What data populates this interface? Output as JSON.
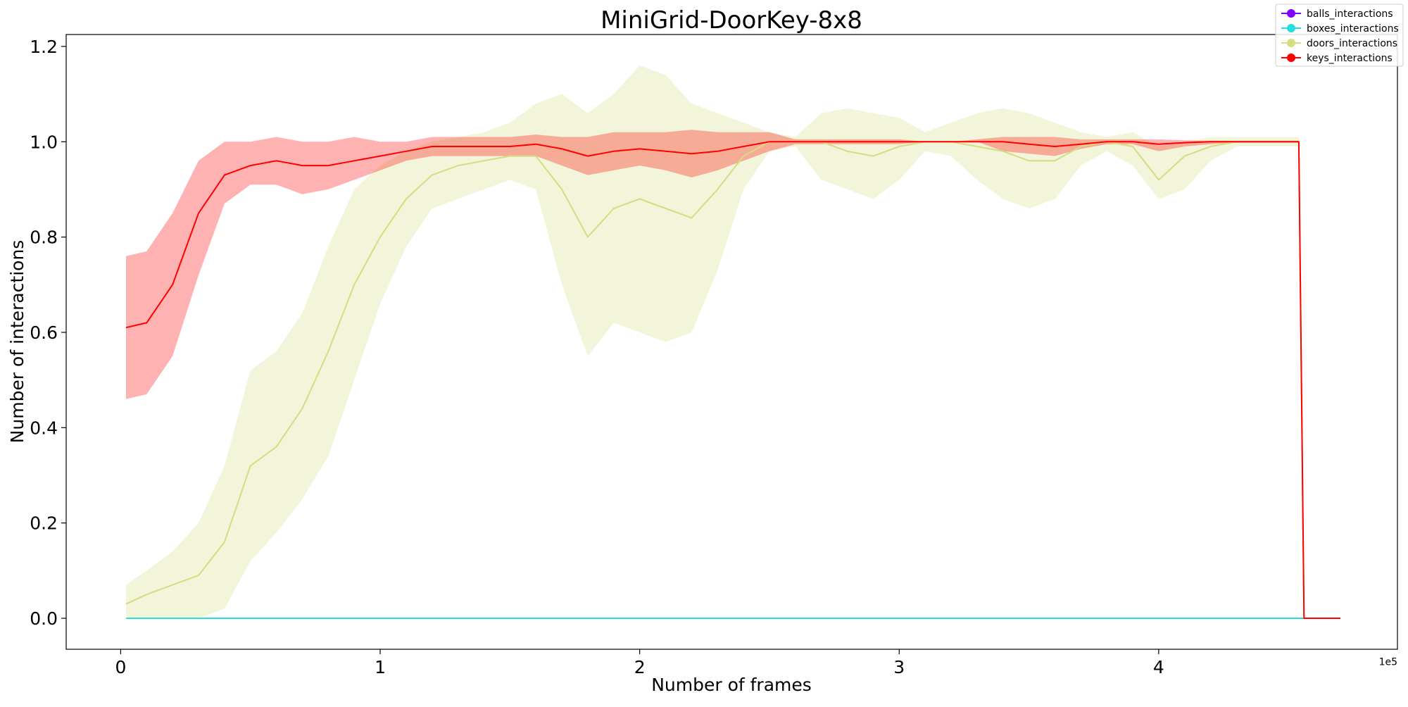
{
  "chart_data": {
    "type": "line",
    "title": "MiniGrid-DoorKey-8x8",
    "xlabel": "Number of frames",
    "ylabel": "Number of interactions",
    "x_offset_label": "1e5",
    "xlim": [
      -21000,
      492000
    ],
    "ylim": [
      -0.065,
      1.225
    ],
    "x_ticks": [
      0,
      100000,
      200000,
      300000,
      400000
    ],
    "x_tick_labels": [
      "0",
      "1",
      "2",
      "3",
      "4"
    ],
    "y_ticks": [
      0.0,
      0.2,
      0.4,
      0.6,
      0.8,
      1.0,
      1.2
    ],
    "y_tick_labels": [
      "0.0",
      "0.2",
      "0.4",
      "0.6",
      "0.8",
      "1.0",
      "1.2"
    ],
    "grid": false,
    "legend_position": "top-right",
    "series": [
      {
        "name": "balls_interactions",
        "color": "#7f00ff",
        "x": [
          2048,
          454000,
          456000,
          470000
        ],
        "y": [
          0.0,
          0.0,
          0.0,
          0.0
        ],
        "lower": [
          0.0,
          0.0,
          0.0,
          0.0
        ],
        "upper": [
          0.0,
          0.0,
          0.0,
          0.0
        ]
      },
      {
        "name": "boxes_interactions",
        "color": "#2adddd",
        "x": [
          2048,
          454000,
          456000,
          470000
        ],
        "y": [
          0.0,
          0.0,
          0.0,
          0.0
        ],
        "lower": [
          0.0,
          0.0,
          0.0,
          0.0
        ],
        "upper": [
          0.0,
          0.0,
          0.0,
          0.0
        ]
      },
      {
        "name": "doors_interactions",
        "color": "#d4dd80",
        "x": [
          2048,
          10000,
          20000,
          30000,
          40000,
          50000,
          60000,
          70000,
          80000,
          90000,
          100000,
          110000,
          120000,
          130000,
          140000,
          150000,
          160000,
          170000,
          180000,
          190000,
          200000,
          210000,
          220000,
          230000,
          240000,
          250000,
          260000,
          270000,
          280000,
          290000,
          300000,
          310000,
          320000,
          330000,
          340000,
          350000,
          360000,
          370000,
          380000,
          390000,
          400000,
          410000,
          420000,
          430000,
          440000,
          454000,
          456000,
          470000
        ],
        "y": [
          0.03,
          0.05,
          0.07,
          0.09,
          0.16,
          0.32,
          0.36,
          0.44,
          0.56,
          0.7,
          0.8,
          0.88,
          0.93,
          0.95,
          0.96,
          0.97,
          0.97,
          0.9,
          0.8,
          0.86,
          0.88,
          0.86,
          0.84,
          0.9,
          0.97,
          1.0,
          1.0,
          1.0,
          0.98,
          0.97,
          0.99,
          1.0,
          1.0,
          0.99,
          0.98,
          0.96,
          0.96,
          0.99,
          1.0,
          0.99,
          0.92,
          0.97,
          0.99,
          1.0,
          1.0,
          1.0,
          0.0,
          0.0
        ],
        "lower": [
          0.0,
          0.0,
          0.0,
          0.0,
          0.02,
          0.12,
          0.18,
          0.25,
          0.34,
          0.5,
          0.66,
          0.78,
          0.86,
          0.88,
          0.9,
          0.92,
          0.9,
          0.7,
          0.55,
          0.62,
          0.6,
          0.58,
          0.6,
          0.73,
          0.9,
          0.98,
          0.99,
          0.92,
          0.9,
          0.88,
          0.92,
          0.98,
          0.97,
          0.92,
          0.88,
          0.86,
          0.88,
          0.95,
          0.98,
          0.95,
          0.88,
          0.9,
          0.96,
          0.99,
          0.99,
          0.99,
          0.0,
          0.0
        ],
        "upper": [
          0.07,
          0.1,
          0.14,
          0.2,
          0.32,
          0.52,
          0.56,
          0.64,
          0.78,
          0.9,
          0.95,
          0.98,
          1.0,
          1.01,
          1.02,
          1.04,
          1.08,
          1.1,
          1.06,
          1.1,
          1.16,
          1.14,
          1.08,
          1.06,
          1.04,
          1.02,
          1.01,
          1.06,
          1.07,
          1.06,
          1.05,
          1.02,
          1.04,
          1.06,
          1.07,
          1.06,
          1.04,
          1.02,
          1.01,
          1.02,
          0.99,
          1.0,
          1.01,
          1.01,
          1.01,
          1.01,
          0.0,
          0.0
        ]
      },
      {
        "name": "keys_interactions",
        "color": "#ff0000",
        "x": [
          2048,
          10000,
          20000,
          30000,
          40000,
          50000,
          60000,
          70000,
          80000,
          90000,
          100000,
          110000,
          120000,
          130000,
          140000,
          150000,
          160000,
          170000,
          180000,
          190000,
          200000,
          210000,
          220000,
          230000,
          240000,
          250000,
          260000,
          270000,
          280000,
          290000,
          300000,
          310000,
          320000,
          330000,
          340000,
          350000,
          360000,
          370000,
          380000,
          390000,
          400000,
          410000,
          420000,
          430000,
          440000,
          454000,
          456000,
          470000
        ],
        "y": [
          0.61,
          0.62,
          0.7,
          0.85,
          0.93,
          0.95,
          0.96,
          0.95,
          0.95,
          0.96,
          0.97,
          0.98,
          0.99,
          0.99,
          0.99,
          0.99,
          0.995,
          0.985,
          0.97,
          0.98,
          0.985,
          0.98,
          0.975,
          0.98,
          0.99,
          1.0,
          1.0,
          1.0,
          1.0,
          1.0,
          1.0,
          1.0,
          1.0,
          1.0,
          1.0,
          0.995,
          0.99,
          0.995,
          1.0,
          1.0,
          0.995,
          0.998,
          1.0,
          1.0,
          1.0,
          1.0,
          0.0,
          0.0
        ],
        "lower": [
          0.46,
          0.47,
          0.55,
          0.72,
          0.87,
          0.91,
          0.91,
          0.89,
          0.9,
          0.92,
          0.94,
          0.96,
          0.97,
          0.97,
          0.97,
          0.97,
          0.97,
          0.95,
          0.93,
          0.94,
          0.95,
          0.94,
          0.925,
          0.94,
          0.96,
          0.98,
          0.995,
          0.995,
          0.995,
          0.995,
          0.995,
          1.0,
          1.0,
          1.0,
          0.98,
          0.975,
          0.97,
          0.985,
          0.995,
          0.995,
          0.98,
          0.99,
          0.995,
          0.998,
          0.998,
          0.998,
          0.0,
          0.0
        ],
        "upper": [
          0.76,
          0.77,
          0.85,
          0.96,
          1.0,
          1.0,
          1.01,
          1.0,
          1.0,
          1.01,
          1.0,
          1.0,
          1.01,
          1.01,
          1.01,
          1.01,
          1.015,
          1.01,
          1.01,
          1.02,
          1.02,
          1.02,
          1.025,
          1.02,
          1.02,
          1.02,
          1.005,
          1.005,
          1.005,
          1.005,
          1.005,
          1.0,
          1.0,
          1.005,
          1.01,
          1.01,
          1.01,
          1.005,
          1.005,
          1.005,
          1.005,
          1.003,
          1.002,
          1.002,
          1.002,
          1.002,
          0.0,
          0.0
        ]
      }
    ]
  }
}
